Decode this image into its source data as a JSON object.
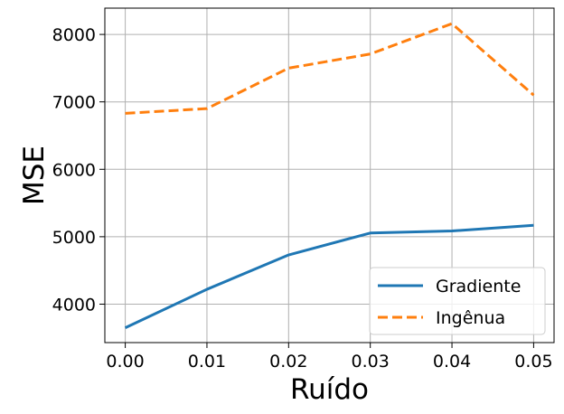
{
  "chart_data": {
    "type": "line",
    "xlabel": "Ruído",
    "ylabel": "MSE",
    "x": [
      0.0,
      0.01,
      0.02,
      0.03,
      0.04,
      0.05
    ],
    "x_ticks": [
      "0.00",
      "0.01",
      "0.02",
      "0.03",
      "0.04",
      "0.05"
    ],
    "y_ticks": [
      "4000",
      "5000",
      "6000",
      "7000",
      "8000"
    ],
    "xlim": [
      -0.0025,
      0.0525
    ],
    "ylim": [
      3430,
      8390
    ],
    "grid": true,
    "legend_position": "lower-right",
    "series": [
      {
        "name": "Gradiente",
        "color": "#1f77b4",
        "dash": "solid",
        "values": [
          3650,
          4220,
          4730,
          5055,
          5085,
          5170
        ]
      },
      {
        "name": "Ingênua",
        "color": "#ff7f0e",
        "dash": "dashed",
        "values": [
          6830,
          6900,
          7500,
          7710,
          8160,
          7100
        ]
      }
    ]
  }
}
